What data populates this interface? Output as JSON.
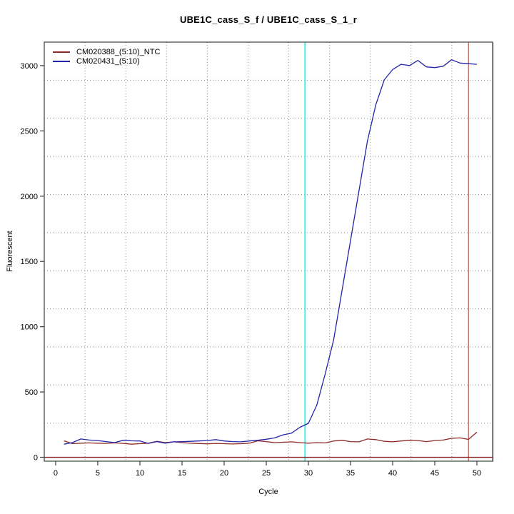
{
  "chart_data": {
    "type": "line",
    "title": "UBE1C_cass_S_f / UBE1C_cass_S_1_r",
    "xlabel": "Cycle",
    "ylabel": "Fluorescent",
    "x": [
      1,
      2,
      3,
      4,
      5,
      6,
      7,
      8,
      9,
      10,
      11,
      12,
      13,
      14,
      15,
      16,
      17,
      18,
      19,
      20,
      21,
      22,
      23,
      24,
      25,
      26,
      27,
      28,
      29,
      30,
      31,
      32,
      33,
      34,
      35,
      36,
      37,
      38,
      39,
      40,
      41,
      42,
      43,
      44,
      45,
      46,
      47,
      48,
      49,
      50
    ],
    "series": [
      {
        "name": "CM020388_(5:10)_NTC",
        "color": "#8f2a2a",
        "values": [
          126,
          104,
          108,
          110,
          108,
          106,
          110,
          106,
          100,
          104,
          108,
          122,
          112,
          118,
          112,
          108,
          105,
          103,
          106,
          104,
          102,
          104,
          108,
          126,
          120,
          112,
          115,
          118,
          112,
          108,
          112,
          110,
          125,
          130,
          120,
          118,
          140,
          135,
          122,
          118,
          125,
          130,
          128,
          120,
          128,
          132,
          145,
          148,
          137,
          192
        ]
      },
      {
        "name": "CM020431_(5:10)",
        "color": "#2424a8",
        "values": [
          100,
          112,
          140,
          132,
          128,
          120,
          112,
          130,
          126,
          125,
          106,
          120,
          108,
          118,
          120,
          122,
          125,
          128,
          135,
          125,
          120,
          118,
          125,
          130,
          138,
          148,
          172,
          185,
          230,
          260,
          400,
          640,
          900,
          1280,
          1660,
          2040,
          2420,
          2700,
          2890,
          2970,
          3010,
          3000,
          3040,
          2990,
          2985,
          2995,
          3045,
          3020,
          3015,
          3010
        ]
      }
    ],
    "x_axis": {
      "ticks": [
        0,
        5,
        10,
        15,
        20,
        25,
        30,
        35,
        40,
        45,
        50
      ],
      "range": [
        -1.35,
        51.86
      ]
    },
    "y_axis": {
      "ticks": [
        0,
        500,
        1000,
        1500,
        2000,
        2500,
        3000
      ],
      "range": [
        -30,
        3180
      ]
    },
    "vlines": [
      {
        "x": 29.6,
        "color": "#55e8e8",
        "width": 2,
        "name": "threshold-cycle-line"
      },
      {
        "x": 49.0,
        "color": "#c25a50",
        "width": 1.2,
        "name": "end-cycle-line"
      }
    ],
    "hlines": [
      {
        "y": 0,
        "color": "#8b1a1a",
        "width": 1.4,
        "name": "zero-baseline-line"
      }
    ],
    "grid": {
      "nx": 11,
      "ny": 11,
      "style": "dotted",
      "color": "#8f8f8f"
    },
    "legend_position": "top-left"
  }
}
